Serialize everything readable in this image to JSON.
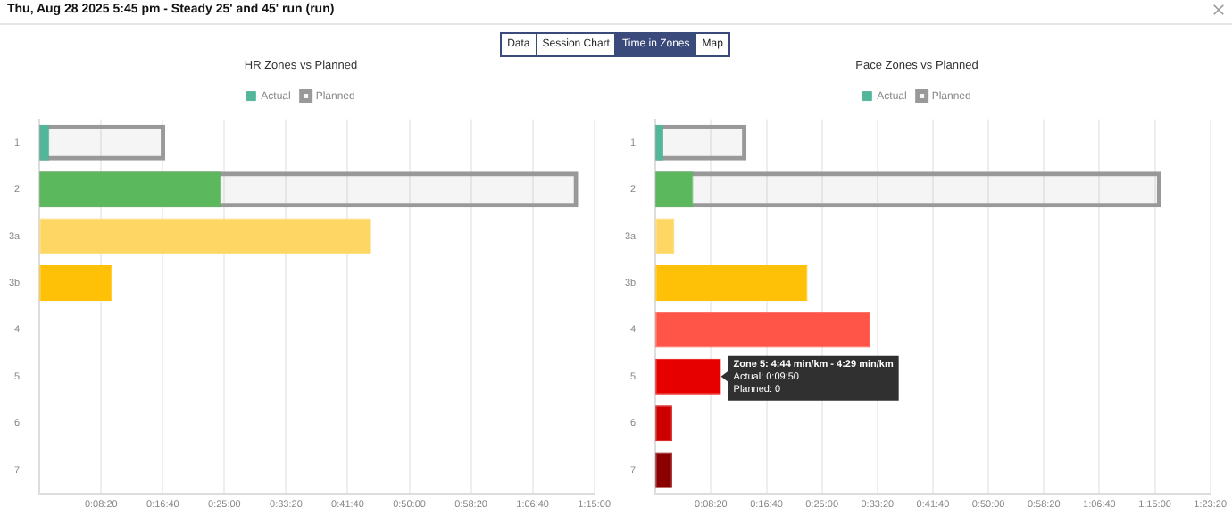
{
  "chart_data": [
    {
      "type": "other",
      "title": "Thu, Aug 28 2025 5:45 pm - Steady 25' and 45' run (run)",
      "annotations": [
        "Data",
        "Session Chart",
        "Time in Zones",
        "Map"
      ]
    },
    {
      "type": "bar",
      "orientation": "horizontal",
      "title": "HR Zones vs Planned",
      "categories": [
        "1",
        "2",
        "3a",
        "3b",
        "4",
        "5",
        "6",
        "7"
      ],
      "series": [
        {
          "name": "Actual",
          "colors": [
            "#52b69a",
            "#5cb85c",
            "#fdd663",
            "#ffc107",
            "#ff5549",
            "#e60000",
            "#cc0000",
            "#8b0000"
          ],
          "values": [
            80,
            1470,
            2690,
            590,
            0,
            0,
            0,
            0
          ]
        },
        {
          "name": "Planned",
          "color": "#999999",
          "values": [
            1020,
            4370,
            0,
            0,
            0,
            0,
            0,
            0
          ]
        }
      ],
      "xlim": [
        0,
        4500
      ],
      "xticks": [
        {
          "value": 500,
          "label": "0:08:20"
        },
        {
          "value": 1000,
          "label": "0:16:40"
        },
        {
          "value": 1500,
          "label": "0:25:00"
        },
        {
          "value": 2000,
          "label": "0:33:20"
        },
        {
          "value": 2500,
          "label": "0:41:40"
        },
        {
          "value": 3000,
          "label": "0:50:00"
        },
        {
          "value": 3500,
          "label": "0:58:20"
        },
        {
          "value": 4000,
          "label": "1:06:40"
        },
        {
          "value": 4500,
          "label": "1:15:00"
        }
      ],
      "grid": "x",
      "legend": "top"
    },
    {
      "type": "bar",
      "orientation": "horizontal",
      "title": "Pace Zones vs Planned",
      "categories": [
        "1",
        "2",
        "3a",
        "3b",
        "4",
        "5",
        "6",
        "7"
      ],
      "series": [
        {
          "name": "Actual",
          "colors": [
            "#52b69a",
            "#5cb85c",
            "#fdd663",
            "#ffc107",
            "#ff5549",
            "#e60000",
            "#cc0000",
            "#8b0000"
          ],
          "values": [
            70,
            340,
            170,
            1370,
            1930,
            590,
            150,
            150
          ]
        },
        {
          "name": "Planned",
          "color": "#999999",
          "values": [
            820,
            4560,
            0,
            0,
            0,
            0,
            0,
            0
          ]
        }
      ],
      "xlim": [
        0,
        5000
      ],
      "xticks": [
        {
          "value": 500,
          "label": "0:08:20"
        },
        {
          "value": 1000,
          "label": "0:16:40"
        },
        {
          "value": 1500,
          "label": "0:25:00"
        },
        {
          "value": 2000,
          "label": "0:33:20"
        },
        {
          "value": 2500,
          "label": "0:41:40"
        },
        {
          "value": 3000,
          "label": "0:50:00"
        },
        {
          "value": 3500,
          "label": "0:58:20"
        },
        {
          "value": 4000,
          "label": "1:06:40"
        },
        {
          "value": 4500,
          "label": "1:15:00"
        },
        {
          "value": 5000,
          "label": "1:23:20"
        }
      ],
      "grid": "x",
      "legend": "top",
      "annotations": [
        {
          "text": "Zone 5: 4:44 min/km - 4:29 min/km\nActual: 0:09:50\nPlanned: 0",
          "x": 590,
          "y": "5"
        }
      ]
    }
  ]
}
